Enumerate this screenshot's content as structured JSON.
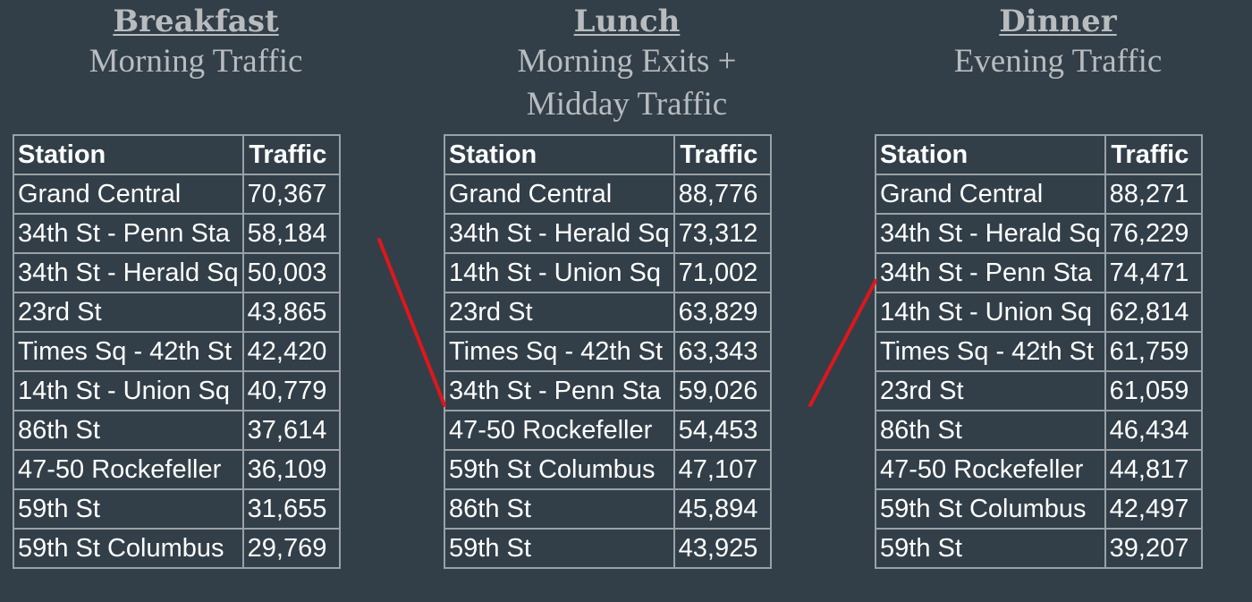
{
  "panels": [
    {
      "title": "Breakfast",
      "subtitle": [
        "Morning Traffic"
      ],
      "headers": [
        "Station",
        "Traffic"
      ],
      "rows": [
        [
          "Grand Central",
          "70,367"
        ],
        [
          "34th St - Penn Sta",
          "58,184"
        ],
        [
          "34th St - Herald Sq",
          "50,003"
        ],
        [
          "23rd St",
          "43,865"
        ],
        [
          "Times Sq - 42th St",
          "42,420"
        ],
        [
          "14th St - Union Sq",
          "40,779"
        ],
        [
          "86th St",
          "37,614"
        ],
        [
          "47-50 Rockefeller",
          "36,109"
        ],
        [
          "59th St",
          "31,655"
        ],
        [
          "59th St Columbus",
          "29,769"
        ]
      ]
    },
    {
      "title": "Lunch",
      "subtitle": [
        "Morning Exits +",
        "Midday Traffic"
      ],
      "headers": [
        "Station",
        "Traffic"
      ],
      "rows": [
        [
          "Grand Central",
          "88,776"
        ],
        [
          "34th St - Herald Sq",
          "73,312"
        ],
        [
          "14th St - Union Sq",
          "71,002"
        ],
        [
          "23rd St",
          "63,829"
        ],
        [
          "Times Sq - 42th St",
          "63,343"
        ],
        [
          "34th St - Penn Sta",
          "59,026"
        ],
        [
          "47-50 Rockefeller",
          "54,453"
        ],
        [
          "59th St Columbus",
          "47,107"
        ],
        [
          "86th St",
          "45,894"
        ],
        [
          "59th St",
          "43,925"
        ]
      ]
    },
    {
      "title": "Dinner",
      "subtitle": [
        "Evening Traffic"
      ],
      "headers": [
        "Station",
        "Traffic"
      ],
      "rows": [
        [
          "Grand Central",
          "88,271"
        ],
        [
          "34th St - Herald Sq",
          "76,229"
        ],
        [
          "34th St - Penn Sta",
          "74,471"
        ],
        [
          "14th St - Union Sq",
          "62,814"
        ],
        [
          "Times Sq - 42th St",
          "61,759"
        ],
        [
          "23rd St",
          "61,059"
        ],
        [
          "86th St",
          "46,434"
        ],
        [
          "47-50 Rockefeller",
          "44,817"
        ],
        [
          "59th St Columbus",
          "42,497"
        ],
        [
          "59th St",
          "39,207"
        ]
      ]
    }
  ],
  "colors": {
    "background": "#323f48",
    "title_text": "#b8bcbf",
    "table_text": "#ffffff",
    "grid": "#9aa1a6",
    "connector": "#e0161b"
  }
}
